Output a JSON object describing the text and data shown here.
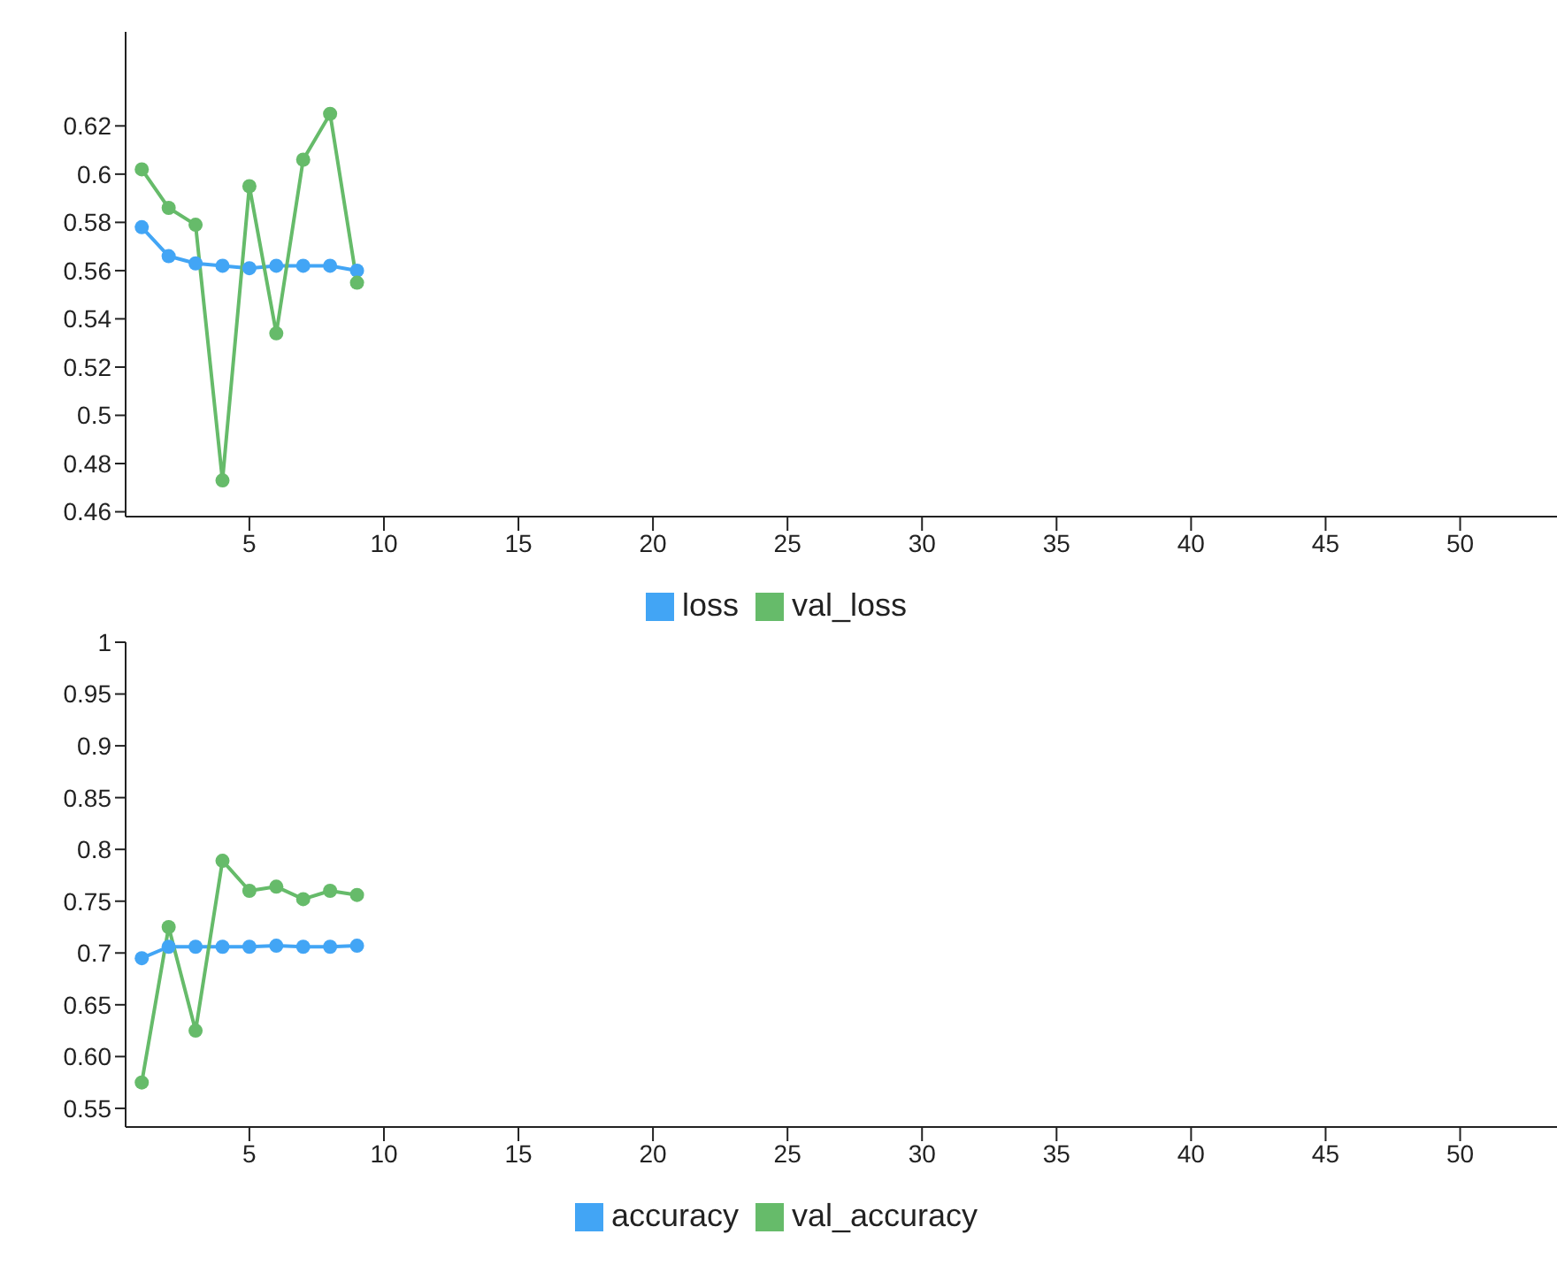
{
  "chart_data": [
    {
      "type": "line",
      "x": [
        1,
        2,
        3,
        4,
        5,
        6,
        7,
        8,
        9
      ],
      "xlim": [
        0.4,
        53.6
      ],
      "xticks": [
        5,
        10,
        15,
        20,
        25,
        30,
        35,
        40,
        45,
        50
      ],
      "ylim": [
        0.458,
        0.659
      ],
      "yticks": [
        0.46,
        0.48,
        0.5,
        0.52,
        0.54,
        0.56,
        0.58,
        0.6,
        0.62
      ],
      "marker": "circle",
      "legend": "bottom",
      "grid": false,
      "series": [
        {
          "name": "loss",
          "color": "#42a5f5",
          "values": [
            0.578,
            0.566,
            0.563,
            0.562,
            0.561,
            0.562,
            0.562,
            0.562,
            0.56
          ]
        },
        {
          "name": "val_loss",
          "color": "#66bb6a",
          "values": [
            0.602,
            0.586,
            0.579,
            0.473,
            0.595,
            0.534,
            0.606,
            0.625,
            0.555
          ]
        }
      ]
    },
    {
      "type": "line",
      "x": [
        1,
        2,
        3,
        4,
        5,
        6,
        7,
        8,
        9
      ],
      "xlim": [
        0.4,
        53.6
      ],
      "xticks": [
        5,
        10,
        15,
        20,
        25,
        30,
        35,
        40,
        45,
        50
      ],
      "ylim": [
        0.532,
        1
      ],
      "yticks": [
        0.55,
        {
          "value": 0.6,
          "label": "0.60"
        },
        0.65,
        0.7,
        0.75,
        0.8,
        0.85,
        0.9,
        0.95,
        1
      ],
      "marker": "circle",
      "legend": "bottom",
      "grid": false,
      "series": [
        {
          "name": "accuracy",
          "color": "#42a5f5",
          "values": [
            0.695,
            0.706,
            0.706,
            0.706,
            0.706,
            0.707,
            0.706,
            0.706,
            0.707
          ]
        },
        {
          "name": "val_accuracy",
          "color": "#66bb6a",
          "values": [
            0.575,
            0.725,
            0.625,
            0.789,
            0.76,
            0.764,
            0.752,
            0.76,
            0.756
          ]
        }
      ]
    }
  ]
}
